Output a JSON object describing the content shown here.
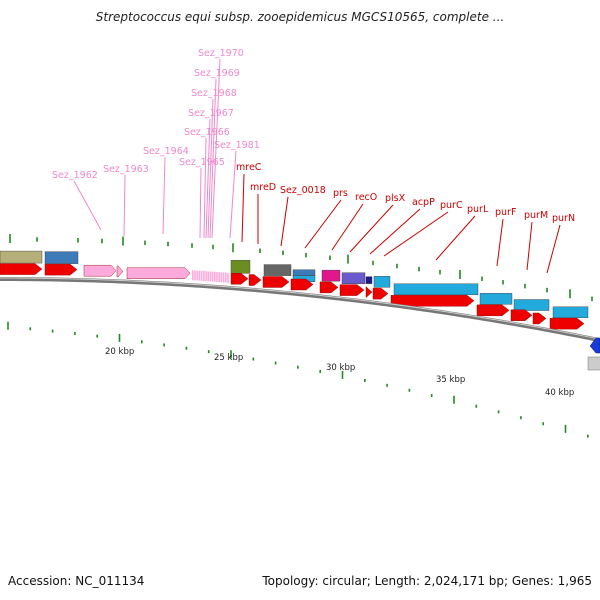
{
  "title": "Streptococcus equi subsp. zooepidemicus MGCS10565, complete ...",
  "accession_label": "Accession: NC_011134",
  "topology_label": "Topology: circular; Length: 2,024,171 bp; Genes: 1,965",
  "colors": {
    "pink_label": "#ee88cc",
    "red_label": "#cc0000",
    "rna_gene": "#ffaadd",
    "red_gene": "#ee0000",
    "cyan_gene": "#22aadd",
    "tick": "#228822",
    "backbone": "#777777"
  },
  "scale_labels": [
    "20 kbp",
    "25 kbp",
    "30 kbp",
    "35 kbp",
    "40 kbp"
  ],
  "pink_labels": [
    "Sez_1962",
    "Sez_1963",
    "Sez_1964",
    "Sez_1965",
    "Sez_1966",
    "Sez_1967",
    "Sez_1968",
    "Sez_1969",
    "Sez_1970",
    "Sez_1981"
  ],
  "red_labels": [
    "mreC",
    "mreD",
    "Sez_0018",
    "prs",
    "recO",
    "plsX",
    "acpP",
    "purC",
    "purL",
    "purF",
    "purM",
    "purN"
  ]
}
